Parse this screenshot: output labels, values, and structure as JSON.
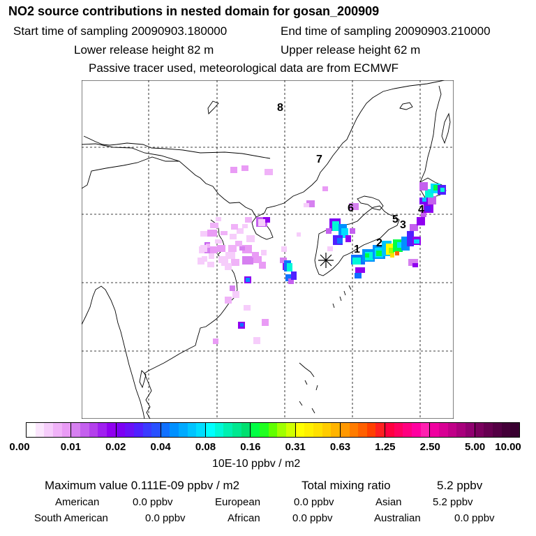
{
  "header": {
    "title": "NO2 source contributions in nested domain for gosan_200909",
    "start_label": "Start time of sampling 20090903.180000",
    "end_label": "End time of sampling 20090903.210000",
    "lower_label": "Lower release height   82 m",
    "upper_label": "Upper release height   62 m",
    "note": "Passive tracer used, meteorological data are from ECMWF"
  },
  "map": {
    "region_labels": [
      "1",
      "2",
      "3",
      "4",
      "5",
      "6",
      "7",
      "8"
    ],
    "station_marker": "asterisk-icon"
  },
  "legend": {
    "ticks": [
      "0.00",
      "0.01",
      "0.02",
      "0.04",
      "0.08",
      "0.16",
      "0.31",
      "0.63",
      "1.25",
      "2.50",
      "5.00",
      "10.00"
    ],
    "unit": "10E-10 ppbv / m2",
    "colors": [
      [
        "#ffffff",
        "#fbe6fd",
        "#f6cdfb",
        "#f0b2f8",
        "#e99bf5"
      ],
      [
        "#d680f0",
        "#c460ee",
        "#b440ec",
        "#a020f0",
        "#9000f0"
      ],
      [
        "#7c00f4",
        "#6a10f8",
        "#5020ff",
        "#3a3aff",
        "#2850ff"
      ],
      [
        "#1070ff",
        "#0090ff",
        "#00aaff",
        "#00c4ff",
        "#00ddff"
      ],
      [
        "#00ffff",
        "#00f8d8",
        "#00f0b0",
        "#00e890",
        "#00e070"
      ],
      [
        "#00ff44",
        "#20ff20",
        "#60ff00",
        "#a0ff00",
        "#d0ff00"
      ],
      [
        "#ffff00",
        "#fff000",
        "#ffe000",
        "#ffcc00",
        "#ffb400"
      ],
      [
        "#ff9800",
        "#ff7c00",
        "#ff6000",
        "#ff4000",
        "#ff2020"
      ],
      [
        "#ff0040",
        "#ff0060",
        "#ff0080",
        "#ff00a0",
        "#ff20b0"
      ],
      [
        "#f000a0",
        "#d80094",
        "#c00088",
        "#a8007c",
        "#900070"
      ],
      [
        "#7a005e",
        "#660050",
        "#540044",
        "#440038",
        "#380030"
      ]
    ]
  },
  "summary": {
    "max_label": "Maximum value  0.111E-09 ppbv / m2",
    "total_label": "Total mixing ratio",
    "total_value": "5.2 ppbv",
    "regions": [
      {
        "name": "American",
        "value": "0.0 ppbv"
      },
      {
        "name": "European",
        "value": "0.0 ppbv"
      },
      {
        "name": "Asian",
        "value": "5.2 ppbv"
      },
      {
        "name": "South American",
        "value": "0.0 ppbv"
      },
      {
        "name": "African",
        "value": "0.0 ppbv"
      },
      {
        "name": "Australian",
        "value": "0.0 ppbv"
      }
    ]
  }
}
